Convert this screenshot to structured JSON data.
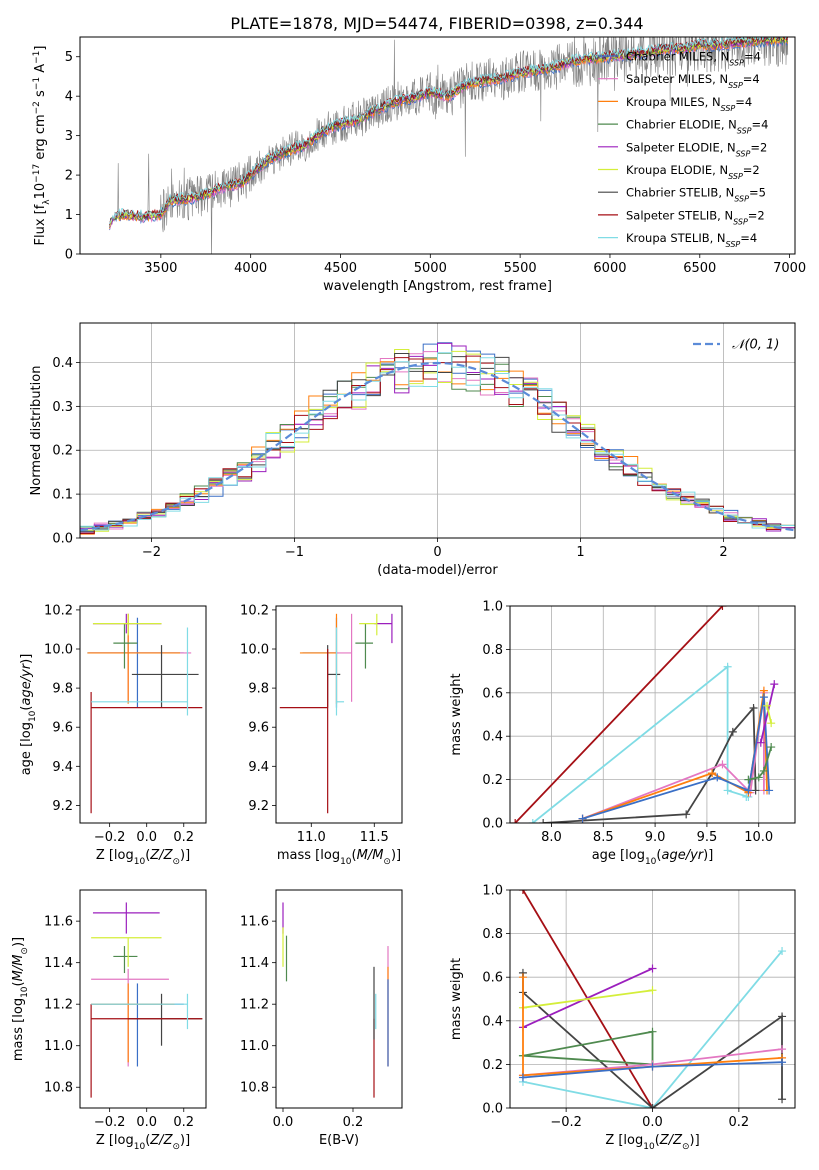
{
  "figure_title": "PLATE=1878, MJD=54474, FIBERID=0398, z=0.344",
  "colors": {
    "Chabrier MILES": "#3a6fc6",
    "Salpeter MILES": "#e377c2",
    "Kroupa MILES": "#ff7f0e",
    "Chabrier ELODIE": "#4f8a4f",
    "Salpeter ELODIE": "#9b1fbd",
    "Kroupa ELODIE": "#d4ee3a",
    "Chabrier STELIB": "#444444",
    "Salpeter STELIB": "#a50f15",
    "Kroupa STELIB": "#80dce5",
    "data": "#808080",
    "normal": "#5b8bd8"
  },
  "chart_data": [
    {
      "type": "line",
      "panel": "spectrum",
      "title": "PLATE=1878, MJD=54474, FIBERID=0398, z=0.344",
      "xlabel": "wavelength [Angstrom, rest frame]",
      "ylabel": "Flux [f_λ 10^-17 erg cm^-2 s^-1 A^-1]",
      "xlim": [
        3050,
        7030
      ],
      "ylim": [
        0,
        5.5
      ],
      "xticks": [
        "3500",
        "4000",
        "4500",
        "5000",
        "5500",
        "6000",
        "6500",
        "7000"
      ],
      "yticks": [
        "0",
        "1",
        "2",
        "3",
        "4",
        "5"
      ],
      "continuum": {
        "x": [
          3200,
          3250,
          3300,
          3400,
          3500,
          3550,
          3650,
          3750,
          3850,
          3950,
          4000,
          4100,
          4200,
          4300,
          4400,
          4500,
          4600,
          4700,
          4800,
          4900,
          5000,
          5100,
          5200,
          5300,
          5400,
          5500,
          5600,
          5700,
          5800,
          5900,
          6000,
          6100,
          6200,
          6300,
          6400,
          6500,
          6600,
          6700,
          6800,
          7000
        ],
        "y": [
          0.7,
          0.95,
          1.0,
          0.95,
          1.0,
          1.35,
          1.4,
          1.5,
          1.7,
          1.8,
          2.0,
          2.4,
          2.6,
          2.75,
          3.1,
          3.3,
          3.4,
          3.65,
          3.85,
          3.95,
          4.1,
          4.0,
          4.3,
          4.4,
          4.45,
          4.6,
          4.65,
          4.75,
          4.9,
          4.95,
          5.0,
          5.05,
          5.1,
          5.2,
          5.2,
          5.3,
          5.3,
          5.35,
          5.4,
          5.45
        ]
      },
      "series": [
        {
          "name": "Chabrier MILES",
          "label": "Chabrier MILES, N",
          "sub": "SSP",
          "eq": "=4"
        },
        {
          "name": "Salpeter MILES",
          "label": "Salpeter MILES, N",
          "sub": "SSP",
          "eq": "=4"
        },
        {
          "name": "Kroupa MILES",
          "label": "Kroupa MILES, N",
          "sub": "SSP",
          "eq": "=4"
        },
        {
          "name": "Chabrier ELODIE",
          "label": "Chabrier ELODIE, N",
          "sub": "SSP",
          "eq": "=4"
        },
        {
          "name": "Salpeter ELODIE",
          "label": "Salpeter ELODIE, N",
          "sub": "SSP",
          "eq": "=2"
        },
        {
          "name": "Kroupa ELODIE",
          "label": "Kroupa ELODIE, N",
          "sub": "SSP",
          "eq": "=2"
        },
        {
          "name": "Chabrier STELIB",
          "label": "Chabrier STELIB, N",
          "sub": "SSP",
          "eq": "=5"
        },
        {
          "name": "Salpeter STELIB",
          "label": "Salpeter STELIB, N",
          "sub": "SSP",
          "eq": "=2"
        },
        {
          "name": "Kroupa STELIB",
          "label": "Kroupa STELIB, N",
          "sub": "SSP",
          "eq": "=4"
        }
      ],
      "legend": "upper right"
    },
    {
      "type": "line",
      "panel": "residuals",
      "xlabel": "(data-model)/error",
      "ylabel": "Normed distribution",
      "xlim": [
        -2.5,
        2.5
      ],
      "ylim": [
        0,
        0.49
      ],
      "xticks": [
        "−2",
        "−1",
        "0",
        "1",
        "2"
      ],
      "yticks": [
        "0.0",
        "0.1",
        "0.2",
        "0.3",
        "0.4"
      ],
      "grid": true,
      "bin_edges": [
        -2.5,
        -2.4,
        -2.3,
        -2.2,
        -2.1,
        -2.0,
        -1.9,
        -1.8,
        -1.7,
        -1.6,
        -1.5,
        -1.4,
        -1.3,
        -1.2,
        -1.1,
        -1.0,
        -0.9,
        -0.8,
        -0.7,
        -0.6,
        -0.5,
        -0.4,
        -0.3,
        -0.2,
        -0.1,
        0.0,
        0.1,
        0.2,
        0.3,
        0.4,
        0.5,
        0.6,
        0.7,
        0.8,
        0.9,
        1.0,
        1.1,
        1.2,
        1.3,
        1.4,
        1.5,
        1.6,
        1.7,
        1.8,
        1.9,
        2.0,
        2.1,
        2.2,
        2.3,
        2.4,
        2.5
      ],
      "normal_label": "𝒩(0, 1)",
      "legend": "upper right"
    },
    {
      "type": "scatter",
      "panel": "age_vs_Z",
      "xlabel": "Z [log10(Z/Z⊙)]",
      "ylabel": "age  [log10(age/yr)]",
      "xlim": [
        -0.36,
        0.32
      ],
      "ylim": [
        9.11,
        10.22
      ],
      "xticks": [
        "−0.2",
        "0.0",
        "0.2"
      ],
      "yticks": [
        "9.2",
        "9.4",
        "9.6",
        "9.8",
        "10.0",
        "10.2"
      ],
      "points": [
        {
          "name": "Chabrier MILES",
          "x": -0.05,
          "y": 9.98,
          "xerr": [
            0.27,
            0.25
          ],
          "yerr": [
            0.28,
            0.18
          ]
        },
        {
          "name": "Salpeter MILES",
          "x": -0.1,
          "y": 9.98,
          "xerr": [
            0.21,
            0.34
          ],
          "yerr": [
            0.25,
            0.2
          ]
        },
        {
          "name": "Kroupa MILES",
          "x": -0.1,
          "y": 9.98,
          "xerr": [
            0.22,
            0.28
          ],
          "yerr": [
            0.26,
            0.2
          ]
        },
        {
          "name": "Chabrier ELODIE",
          "x": -0.12,
          "y": 10.03,
          "xerr": [
            0.06,
            0.07
          ],
          "yerr": [
            0.13,
            0.1
          ]
        },
        {
          "name": "Salpeter ELODIE",
          "x": -0.11,
          "y": 10.13,
          "xerr": [
            0.18,
            0.19
          ],
          "yerr": [
            0.05,
            0.05
          ]
        },
        {
          "name": "Kroupa ELODIE",
          "x": -0.1,
          "y": 10.13,
          "xerr": [
            0.19,
            0.18
          ],
          "yerr": [
            0.06,
            0.05
          ]
        },
        {
          "name": "Chabrier STELIB",
          "x": 0.08,
          "y": 9.87,
          "xerr": [
            0.16,
            0.2
          ],
          "yerr": [
            0.17,
            0.15
          ]
        },
        {
          "name": "Salpeter STELIB",
          "x": -0.3,
          "y": 9.7,
          "xerr": [
            0.0,
            0.6
          ],
          "yerr": [
            0.54,
            0.08
          ]
        },
        {
          "name": "Kroupa STELIB",
          "x": 0.22,
          "y": 9.73,
          "xerr": [
            0.52,
            0.0
          ],
          "yerr": [
            0.07,
            0.38
          ]
        }
      ]
    },
    {
      "type": "scatter",
      "panel": "age_vs_mass",
      "xlabel": "mass [log10(M/M⊙)]",
      "xlim": [
        10.72,
        11.72
      ],
      "ylim": [
        9.11,
        10.22
      ],
      "xticks": [
        "11.0",
        "11.5"
      ],
      "yticks": [
        "9.2",
        "9.4",
        "9.6",
        "9.8",
        "10.0",
        "10.2"
      ],
      "points": [
        {
          "name": "Chabrier MILES",
          "x": 11.2,
          "y": 9.98,
          "xerr": [
            0.27,
            0.0
          ],
          "yerr": [
            0.28,
            0.18
          ]
        },
        {
          "name": "Salpeter MILES",
          "x": 11.32,
          "y": 9.98,
          "xerr": [
            0.18,
            0.0
          ],
          "yerr": [
            0.25,
            0.2
          ]
        },
        {
          "name": "Kroupa MILES",
          "x": 11.2,
          "y": 9.98,
          "xerr": [
            0.29,
            0.0
          ],
          "yerr": [
            0.26,
            0.2
          ]
        },
        {
          "name": "Chabrier ELODIE",
          "x": 11.43,
          "y": 10.03,
          "xerr": [
            0.08,
            0.06
          ],
          "yerr": [
            0.13,
            0.1
          ]
        },
        {
          "name": "Salpeter ELODIE",
          "x": 11.64,
          "y": 10.13,
          "xerr": [
            0.14,
            0.0
          ],
          "yerr": [
            0.1,
            0.05
          ]
        },
        {
          "name": "Kroupa ELODIE",
          "x": 11.52,
          "y": 10.13,
          "xerr": [
            0.14,
            0.0
          ],
          "yerr": [
            0.06,
            0.05
          ]
        },
        {
          "name": "Chabrier STELIB",
          "x": 11.13,
          "y": 9.87,
          "xerr": [
            0.0,
            0.1
          ],
          "yerr": [
            0.17,
            0.15
          ]
        },
        {
          "name": "Salpeter STELIB",
          "x": 11.13,
          "y": 9.7,
          "xerr": [
            0.38,
            0.0
          ],
          "yerr": [
            0.54,
            0.3
          ]
        },
        {
          "name": "Kroupa STELIB",
          "x": 11.2,
          "y": 9.73,
          "xerr": [
            0.0,
            0.06
          ],
          "yerr": [
            0.07,
            0.38
          ]
        }
      ]
    },
    {
      "type": "line",
      "panel": "mass_weight_vs_age",
      "xlabel": "age  [log10(age/yr)]",
      "ylabel": "mass weight",
      "xlim": [
        7.6,
        10.35
      ],
      "ylim": [
        0,
        1.0
      ],
      "xticks": [
        "8.0",
        "8.5",
        "9.0",
        "9.5",
        "10.0"
      ],
      "yticks": [
        "0.0",
        "0.2",
        "0.4",
        "0.6",
        "0.8",
        "1.0"
      ],
      "grid": true,
      "series": [
        {
          "name": "Salpeter STELIB",
          "x": [
            7.65,
            9.65
          ],
          "y": [
            0.0,
            1.0
          ]
        },
        {
          "name": "Kroupa STELIB",
          "x": [
            7.82,
            9.7,
            9.7,
            9.9,
            9.88
          ],
          "y": [
            0.0,
            0.72,
            0.15,
            0.12,
            0.12
          ]
        },
        {
          "name": "Chabrier STELIB",
          "x": [
            7.92,
            9.3,
            9.55,
            9.75,
            9.95,
            9.97
          ],
          "y": [
            0.0,
            0.04,
            0.23,
            0.42,
            0.53,
            0.15
          ]
        },
        {
          "name": "Salpeter MILES",
          "x": [
            8.3,
            9.65,
            9.92,
            10.05,
            10.05
          ],
          "y": [
            0.02,
            0.27,
            0.14,
            0.6,
            0.15
          ]
        },
        {
          "name": "Kroupa MILES",
          "x": [
            8.3,
            9.55,
            9.9,
            10.05,
            10.08
          ],
          "y": [
            0.02,
            0.23,
            0.14,
            0.61,
            0.15
          ]
        },
        {
          "name": "Chabrier MILES",
          "x": [
            8.3,
            9.6,
            9.9,
            10.05,
            10.1
          ],
          "y": [
            0.02,
            0.21,
            0.15,
            0.58,
            0.15
          ]
        },
        {
          "name": "Chabrier ELODIE",
          "x": [
            9.9,
            10.0,
            10.05,
            10.12
          ],
          "y": [
            0.2,
            0.21,
            0.24,
            0.35
          ]
        },
        {
          "name": "Salpeter ELODIE",
          "x": [
            10.02,
            10.15
          ],
          "y": [
            0.37,
            0.64
          ]
        },
        {
          "name": "Kroupa ELODIE",
          "x": [
            10.08,
            10.12
          ],
          "y": [
            0.54,
            0.46
          ]
        }
      ]
    },
    {
      "type": "scatter",
      "panel": "mass_vs_Z",
      "xlabel": "Z [log10(Z/Z⊙)]",
      "ylabel": "mass [log10(M/M⊙)]",
      "xlim": [
        -0.36,
        0.32
      ],
      "ylim": [
        10.7,
        11.75
      ],
      "xticks": [
        "−0.2",
        "0.0",
        "0.2"
      ],
      "yticks": [
        "10.8",
        "11.0",
        "11.2",
        "11.4",
        "11.6"
      ],
      "points": [
        {
          "name": "Chabrier MILES",
          "x": -0.05,
          "y": 11.2,
          "xerr": [
            0.25,
            0.25
          ],
          "yerr": [
            0.3,
            0.1
          ]
        },
        {
          "name": "Salpeter MILES",
          "x": -0.1,
          "y": 11.32,
          "xerr": [
            0.2,
            0.22
          ],
          "yerr": [
            0.42,
            0.05
          ]
        },
        {
          "name": "Kroupa MILES",
          "x": -0.1,
          "y": 11.2,
          "xerr": [
            0.2,
            0.25
          ],
          "yerr": [
            0.28,
            0.1
          ]
        },
        {
          "name": "Chabrier ELODIE",
          "x": -0.12,
          "y": 11.43,
          "xerr": [
            0.06,
            0.07
          ],
          "yerr": [
            0.08,
            0.05
          ]
        },
        {
          "name": "Salpeter ELODIE",
          "x": -0.11,
          "y": 11.64,
          "xerr": [
            0.18,
            0.18
          ],
          "yerr": [
            0.1,
            0.05
          ]
        },
        {
          "name": "Kroupa ELODIE",
          "x": -0.1,
          "y": 11.52,
          "xerr": [
            0.2,
            0.18
          ],
          "yerr": [
            0.14,
            0.0
          ]
        },
        {
          "name": "Chabrier STELIB",
          "x": 0.08,
          "y": 11.13,
          "xerr": [
            0.18,
            0.22
          ],
          "yerr": [
            0.13,
            0.12
          ]
        },
        {
          "name": "Salpeter STELIB",
          "x": -0.3,
          "y": 11.13,
          "xerr": [
            0.0,
            0.6
          ],
          "yerr": [
            0.38,
            0.07
          ]
        },
        {
          "name": "Kroupa STELIB",
          "x": 0.22,
          "y": 11.2,
          "xerr": [
            0.52,
            0.0
          ],
          "yerr": [
            0.12,
            0.05
          ]
        }
      ]
    },
    {
      "type": "scatter",
      "panel": "mass_vs_EBV",
      "xlabel": "E(B-V)",
      "xlim": [
        -0.02,
        0.34
      ],
      "ylim": [
        10.7,
        11.75
      ],
      "xticks": [
        "0.0",
        "0.2"
      ],
      "yticks": [
        "10.8",
        "11.0",
        "11.2",
        "11.4",
        "11.6"
      ],
      "points": [
        {
          "name": "Salpeter ELODIE",
          "x": 0.0,
          "y": 11.64,
          "yerr": [
            0.1,
            0.05
          ]
        },
        {
          "name": "Kroupa ELODIE",
          "x": 0.0,
          "y": 11.52,
          "yerr": [
            0.14,
            0.05
          ]
        },
        {
          "name": "Chabrier ELODIE",
          "x": 0.01,
          "y": 11.43,
          "yerr": [
            0.12,
            0.1
          ]
        },
        {
          "name": "Salpeter STELIB",
          "x": 0.26,
          "y": 11.13,
          "yerr": [
            0.38,
            0.0
          ]
        },
        {
          "name": "Chabrier STELIB",
          "x": 0.26,
          "y": 11.13,
          "yerr": [
            0.1,
            0.25
          ]
        },
        {
          "name": "Kroupa STELIB",
          "x": 0.265,
          "y": 11.2,
          "yerr": [
            0.12,
            0.05
          ]
        },
        {
          "name": "Salpeter MILES",
          "x": 0.3,
          "y": 11.32,
          "yerr": [
            0.42,
            0.16
          ]
        },
        {
          "name": "Kroupa MILES",
          "x": 0.3,
          "y": 11.2,
          "yerr": [
            0.3,
            0.18
          ]
        },
        {
          "name": "Chabrier MILES",
          "x": 0.3,
          "y": 11.2,
          "yerr": [
            0.3,
            0.12
          ]
        }
      ]
    },
    {
      "type": "line",
      "panel": "mass_weight_vs_Z",
      "xlabel": "Z [log10(Z/Z⊙)]",
      "ylabel": "mass weight",
      "xlim": [
        -0.33,
        0.33
      ],
      "ylim": [
        0,
        1.0
      ],
      "xticks": [
        "−0.2",
        "0.0",
        "0.2"
      ],
      "yticks": [
        "0.0",
        "0.2",
        "0.4",
        "0.6",
        "0.8",
        "1.0"
      ],
      "grid": true,
      "series": [
        {
          "name": "Salpeter STELIB",
          "x": [
            -0.3,
            0.0
          ],
          "y": [
            1.0,
            0.0
          ]
        },
        {
          "name": "Kroupa STELIB",
          "x": [
            -0.3,
            0.0,
            0.3
          ],
          "y": [
            0.12,
            0.0,
            0.72
          ]
        },
        {
          "name": "Chabrier STELIB",
          "x": [
            -0.3,
            -0.3,
            0.0,
            0.3,
            0.3
          ],
          "y": [
            0.62,
            0.53,
            0.0,
            0.42,
            0.04
          ]
        },
        {
          "name": "Salpeter ELODIE",
          "x": [
            -0.3,
            0.0
          ],
          "y": [
            0.37,
            0.64
          ]
        },
        {
          "name": "Kroupa ELODIE",
          "x": [
            -0.3,
            0.0
          ],
          "y": [
            0.46,
            0.54
          ]
        },
        {
          "name": "Chabrier ELODIE",
          "x": [
            -0.3,
            0.0,
            0.0,
            -0.3
          ],
          "y": [
            0.24,
            0.2,
            0.35,
            0.24
          ]
        },
        {
          "name": "Salpeter MILES",
          "x": [
            -0.3,
            0.0,
            0.3
          ],
          "y": [
            0.15,
            0.2,
            0.27
          ]
        },
        {
          "name": "Kroupa MILES",
          "x": [
            -0.3,
            -0.3,
            0.0,
            0.3
          ],
          "y": [
            0.6,
            0.15,
            0.19,
            0.23
          ]
        },
        {
          "name": "Chabrier MILES",
          "x": [
            -0.3,
            0.0,
            0.3
          ],
          "y": [
            0.14,
            0.19,
            0.21
          ]
        }
      ]
    }
  ]
}
